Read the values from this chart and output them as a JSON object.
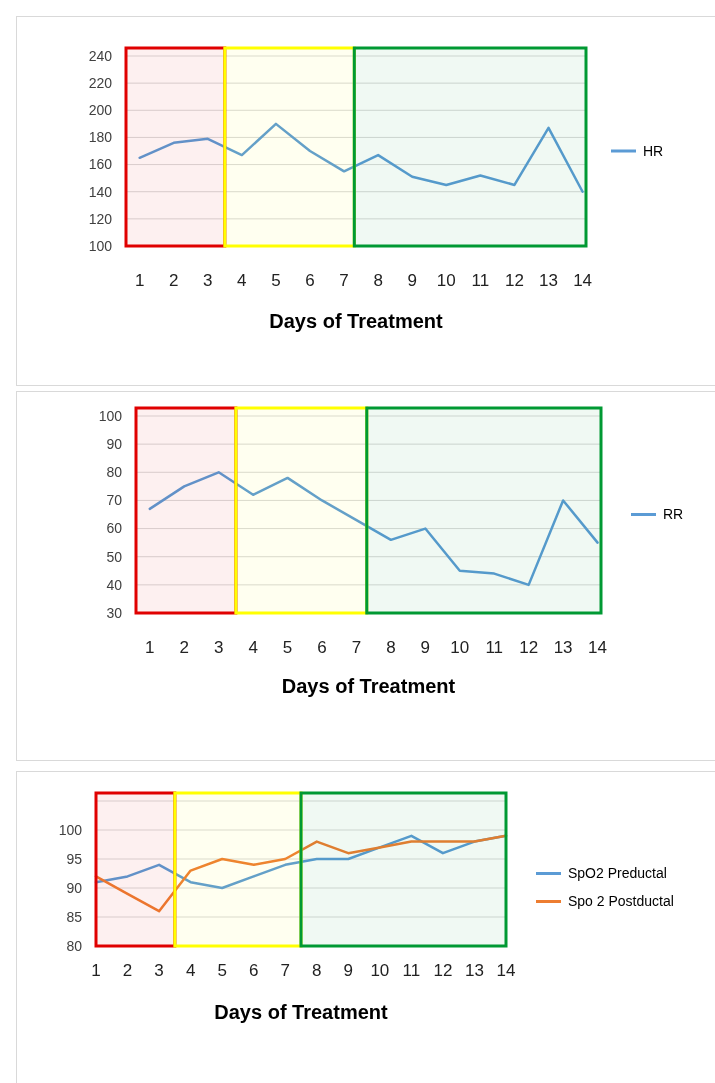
{
  "chart_data": [
    {
      "type": "line",
      "x": [
        1,
        2,
        3,
        4,
        5,
        6,
        7,
        8,
        9,
        10,
        11,
        12,
        13,
        14
      ],
      "xlim": [
        0.6,
        14.1
      ],
      "xticks": [
        1,
        2,
        3,
        4,
        5,
        6,
        7,
        8,
        9,
        10,
        11,
        12,
        13,
        14
      ],
      "ylim": [
        100,
        240
      ],
      "yticks": [
        100,
        120,
        140,
        160,
        180,
        200,
        220,
        240
      ],
      "xlabel": "Days of Treatment",
      "grid": "y",
      "legend": "right",
      "series": [
        {
          "name": "HR",
          "color": "#5b9bd5",
          "values": [
            165,
            176,
            179,
            167,
            190,
            170,
            155,
            167,
            151,
            145,
            152,
            145,
            187,
            140
          ]
        }
      ],
      "bands": [
        {
          "axis": "x",
          "from": 0.6,
          "to": 3.5,
          "color": "#e00000"
        },
        {
          "axis": "x",
          "from": 3.5,
          "to": 7.3,
          "color": "#ffff00"
        },
        {
          "axis": "x",
          "from": 7.3,
          "to": 14.1,
          "color": "#009933"
        }
      ]
    },
    {
      "type": "line",
      "x": [
        1,
        2,
        3,
        4,
        5,
        6,
        7,
        8,
        9,
        10,
        11,
        12,
        13,
        14
      ],
      "xlim": [
        0.6,
        14.1
      ],
      "xticks": [
        1,
        2,
        3,
        4,
        5,
        6,
        7,
        8,
        9,
        10,
        11,
        12,
        13,
        14
      ],
      "ylim": [
        30,
        100
      ],
      "yticks": [
        30,
        40,
        50,
        60,
        70,
        80,
        90,
        100
      ],
      "xlabel": "Days of Treatment",
      "grid": "y",
      "legend": "right",
      "series": [
        {
          "name": "RR",
          "color": "#5b9bd5",
          "values": [
            67,
            75,
            80,
            72,
            78,
            70,
            63,
            56,
            60,
            45,
            44,
            40,
            70,
            55
          ]
        }
      ],
      "bands": [
        {
          "axis": "x",
          "from": 0.6,
          "to": 3.5,
          "color": "#e00000"
        },
        {
          "axis": "x",
          "from": 3.5,
          "to": 7.3,
          "color": "#ffff00"
        },
        {
          "axis": "x",
          "from": 7.3,
          "to": 14.1,
          "color": "#009933"
        }
      ]
    },
    {
      "type": "line",
      "x": [
        1,
        2,
        3,
        4,
        5,
        6,
        7,
        8,
        9,
        10,
        11,
        12,
        13,
        14
      ],
      "xlim": [
        1,
        14
      ],
      "xticks": [
        1,
        2,
        3,
        4,
        5,
        6,
        7,
        8,
        9,
        10,
        11,
        12,
        13,
        14
      ],
      "ylim": [
        80,
        105
      ],
      "yticks": [
        80,
        85,
        90,
        95,
        100,
        {
          "value": 105,
          "label": null
        }
      ],
      "xlabel": "Days of Treatment",
      "grid": "y",
      "legend": "right",
      "series": [
        {
          "name": "SpO2 Preductal",
          "color": "#5b9bd5",
          "values": [
            91,
            92,
            94,
            91,
            90,
            92,
            94,
            95,
            95,
            97,
            99,
            96,
            98,
            99
          ]
        },
        {
          "name": "Spo 2 Postductal",
          "color": "#ed7d31",
          "values": [
            92,
            89,
            86,
            93,
            95,
            94,
            95,
            98,
            96,
            97,
            98,
            98,
            98,
            99
          ]
        }
      ],
      "bands": [
        {
          "axis": "x",
          "from": 1,
          "to": 3.5,
          "color": "#e00000"
        },
        {
          "axis": "x",
          "from": 3.5,
          "to": 7.5,
          "color": "#ffff00"
        },
        {
          "axis": "x",
          "from": 7.5,
          "to": 14,
          "color": "#009933"
        }
      ]
    }
  ]
}
